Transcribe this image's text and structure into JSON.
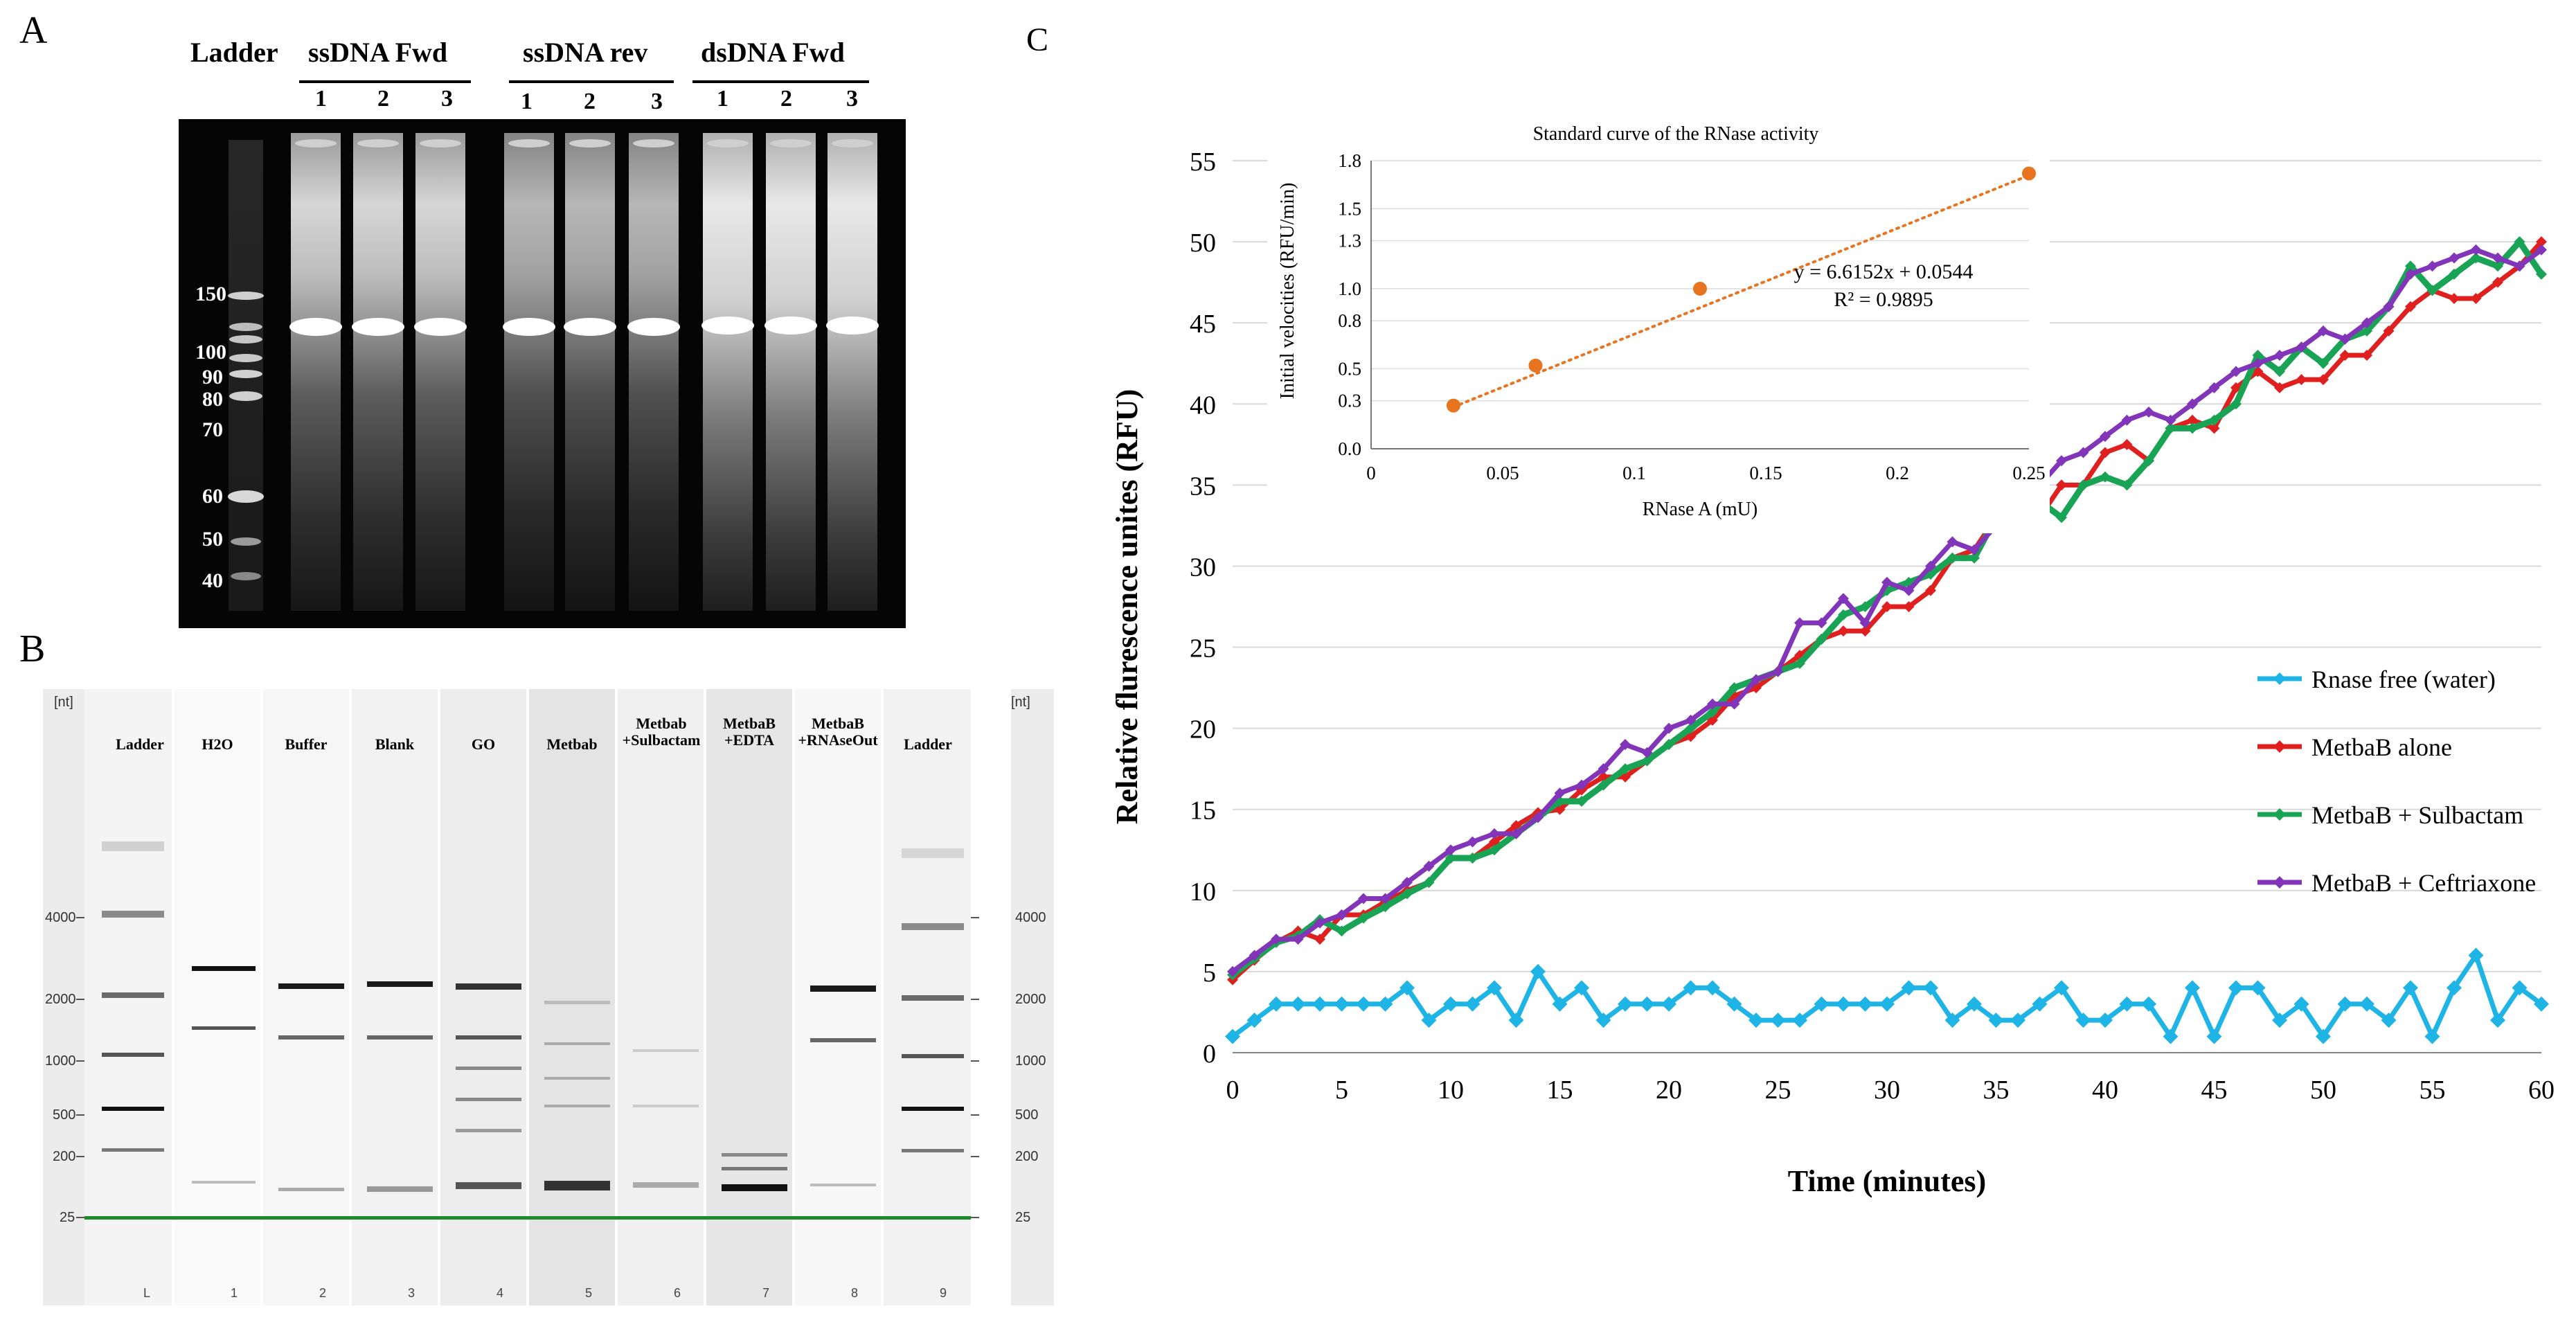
{
  "panelA": {
    "letter": "A",
    "groups": [
      {
        "label": "Ladder"
      },
      {
        "label": "ssDNA Fwd"
      },
      {
        "label": "ssDNA rev"
      },
      {
        "label": "dsDNA Fwd"
      }
    ],
    "lane_numbers": [
      "1",
      "2",
      "3",
      "1",
      "2",
      "3",
      "1",
      "2",
      "3"
    ],
    "ladder_sizes": [
      "150",
      "100",
      "90",
      "80",
      "70",
      "60",
      "50",
      "40"
    ]
  },
  "panelB": {
    "letter": "B",
    "unit_left": "[nt]",
    "unit_right": "[nt]",
    "lanes": [
      {
        "name": "Ladder",
        "foot": "L"
      },
      {
        "name": "H2O",
        "foot": "1"
      },
      {
        "name": "Buffer",
        "foot": "2"
      },
      {
        "name": "Blank",
        "foot": "3"
      },
      {
        "name": "GO",
        "foot": "4"
      },
      {
        "name": "Metbab",
        "foot": "5"
      },
      {
        "name": "Metbab\n+Sulbactam",
        "foot": "6"
      },
      {
        "name": "MetbaB\n+EDTA",
        "foot": "7"
      },
      {
        "name": "MetbaB\n+RNAseOut",
        "foot": "8"
      },
      {
        "name": "Ladder",
        "foot": "9"
      }
    ],
    "sizes": [
      "4000",
      "2000",
      "1000",
      "500",
      "200",
      "25"
    ]
  },
  "panelC": {
    "letter": "C",
    "chart_data": [
      {
        "type": "line",
        "xlabel": "Time (minutes)",
        "ylabel": "Relative flurescence unites (RFU)",
        "xlim": [
          0,
          60
        ],
        "ylim": [
          0,
          55
        ],
        "xticks": [
          0,
          5,
          10,
          15,
          20,
          25,
          30,
          35,
          40,
          45,
          50,
          55,
          60
        ],
        "yticks": [
          0,
          5,
          10,
          15,
          20,
          25,
          30,
          35,
          40,
          45,
          50,
          55
        ],
        "grid": "horizontal",
        "legend_position": "right",
        "series": [
          {
            "name": "Rnase free (water)",
            "color": "#1fb4e6",
            "x": [
              0,
              1,
              2,
              3,
              4,
              5,
              6,
              7,
              8,
              9,
              10,
              11,
              12,
              13,
              14,
              15,
              16,
              17,
              18,
              19,
              20,
              21,
              22,
              23,
              24,
              25,
              26,
              27,
              28,
              29,
              30,
              31,
              32,
              33,
              34,
              35,
              36,
              37,
              38,
              39,
              40,
              41,
              42,
              43,
              44,
              45,
              46,
              47,
              48,
              49,
              50,
              51,
              52,
              53,
              54,
              55,
              56,
              57,
              58,
              59,
              60
            ],
            "values": [
              1,
              2,
              3,
              3,
              3,
              3,
              3,
              3,
              4,
              2,
              3,
              3,
              4,
              2,
              5,
              3,
              4,
              2,
              3,
              3,
              3,
              4,
              4,
              3,
              2,
              2,
              2,
              3,
              3,
              3,
              3,
              4,
              4,
              2,
              3,
              2,
              2,
              3,
              4,
              2,
              2,
              3,
              3,
              1,
              4,
              1,
              4,
              4,
              2,
              3,
              1,
              3,
              3,
              2,
              4,
              1,
              4,
              6,
              2,
              4,
              3
            ]
          },
          {
            "name": "MetbaB alone",
            "color": "#e0201f",
            "x": [
              0,
              1,
              2,
              3,
              4,
              5,
              6,
              7,
              8,
              9,
              10,
              11,
              12,
              13,
              14,
              15,
              16,
              17,
              18,
              19,
              20,
              21,
              22,
              23,
              24,
              25,
              26,
              27,
              28,
              29,
              30,
              31,
              32,
              33,
              34,
              35,
              36,
              37,
              38,
              39,
              40,
              41,
              42,
              43,
              44,
              45,
              46,
              47,
              48,
              49,
              50,
              51,
              52,
              53,
              54,
              55,
              56,
              57,
              58,
              59,
              60
            ],
            "values": [
              4.5,
              5.7,
              6.8,
              7.5,
              7,
              8.5,
              8.5,
              9.3,
              10,
              10.5,
              12,
              12,
              13,
              14,
              14.8,
              15,
              16.2,
              17,
              17,
              18,
              19,
              19.5,
              20.5,
              22,
              22.5,
              23.5,
              24.5,
              25.5,
              26,
              26,
              27.5,
              27.5,
              28.5,
              30.5,
              31,
              33,
              33.5,
              33,
              35,
              35,
              37,
              37.5,
              36.5,
              38.5,
              39,
              38.5,
              41,
              42,
              41,
              41.5,
              41.5,
              43,
              43,
              44.5,
              46,
              47,
              46.5,
              46.5,
              47.5,
              48.5,
              50
            ]
          },
          {
            "name": "MetbaB + Sulbactam",
            "color": "#19a455",
            "x": [
              0,
              1,
              2,
              3,
              4,
              5,
              6,
              7,
              8,
              9,
              10,
              11,
              12,
              13,
              14,
              15,
              16,
              17,
              18,
              19,
              20,
              21,
              22,
              23,
              24,
              25,
              26,
              27,
              28,
              29,
              30,
              31,
              32,
              33,
              34,
              35,
              36,
              37,
              38,
              39,
              40,
              41,
              42,
              43,
              44,
              45,
              46,
              47,
              48,
              49,
              50,
              51,
              52,
              53,
              54,
              55,
              56,
              57,
              58,
              59,
              60
            ],
            "values": [
              4.8,
              5.8,
              6.8,
              7.2,
              8.2,
              7.5,
              8.3,
              9,
              9.8,
              10.5,
              12,
              12,
              12.5,
              13.5,
              14.5,
              15.5,
              15.5,
              16.5,
              17.5,
              18,
              19,
              20,
              21,
              22.5,
              23,
              23.5,
              24,
              25.5,
              27,
              27.5,
              28.5,
              29,
              29.5,
              30.5,
              30.5,
              33,
              33.5,
              34,
              33,
              35,
              35.5,
              35,
              36.5,
              38.5,
              38.5,
              39,
              40,
              43,
              42,
              43.5,
              42.5,
              44,
              44.5,
              46,
              48.5,
              47,
              48,
              49,
              48.5,
              50,
              48
            ]
          },
          {
            "name": "MetbaB + Ceftriaxone",
            "color": "#8235b8",
            "x": [
              0,
              1,
              2,
              3,
              4,
              5,
              6,
              7,
              8,
              9,
              10,
              11,
              12,
              13,
              14,
              15,
              16,
              17,
              18,
              19,
              20,
              21,
              22,
              23,
              24,
              25,
              26,
              27,
              28,
              29,
              30,
              31,
              32,
              33,
              34,
              35,
              36,
              37,
              38,
              39,
              40,
              41,
              42,
              43,
              44,
              45,
              46,
              47,
              48,
              49,
              50,
              51,
              52,
              53,
              54,
              55,
              56,
              57,
              58,
              59,
              60
            ],
            "values": [
              5,
              6,
              7,
              7,
              8,
              8.5,
              9.5,
              9.5,
              10.5,
              11.5,
              12.5,
              13,
              13.5,
              13.5,
              14.5,
              16,
              16.5,
              17.5,
              19,
              18.5,
              20,
              20.5,
              21.5,
              21.5,
              23,
              23.5,
              26.5,
              26.5,
              28,
              26.5,
              29,
              28.5,
              30,
              31.5,
              31,
              32.5,
              35.5,
              35,
              36.5,
              37,
              38,
              39,
              39.5,
              39,
              40,
              41,
              42,
              42.5,
              43,
              43.5,
              44.5,
              44,
              45,
              46,
              48,
              48.5,
              49,
              49.5,
              49,
              48.5,
              49.5
            ]
          }
        ]
      },
      {
        "type": "scatter",
        "title": "Standard curve of the RNase activity",
        "xlabel": "RNase A (mU)",
        "ylabel": "Initial velocities (RFU/min)",
        "xlim": [
          0,
          0.25
        ],
        "ylim": [
          0,
          1.8
        ],
        "xticks": [
          "0",
          "0.05",
          "0.1",
          "0.15",
          "0.2",
          "0.25"
        ],
        "yticks": [
          "0.0",
          "0.3",
          "0.5",
          "0.8",
          "1.0",
          "1.3",
          "1.5",
          "1.8"
        ],
        "series": [
          {
            "color": "#e8741f",
            "x": [
              0.0313,
              0.0625,
              0.125,
              0.25
            ],
            "values": [
              0.27,
              0.52,
              1.0,
              1.72
            ]
          }
        ],
        "trendline": {
          "slope": 6.6152,
          "intercept": 0.0544,
          "style": "dotted"
        },
        "annotations": [
          "y = 6.6152x + 0.0544",
          "R² = 0.9895"
        ]
      }
    ]
  }
}
